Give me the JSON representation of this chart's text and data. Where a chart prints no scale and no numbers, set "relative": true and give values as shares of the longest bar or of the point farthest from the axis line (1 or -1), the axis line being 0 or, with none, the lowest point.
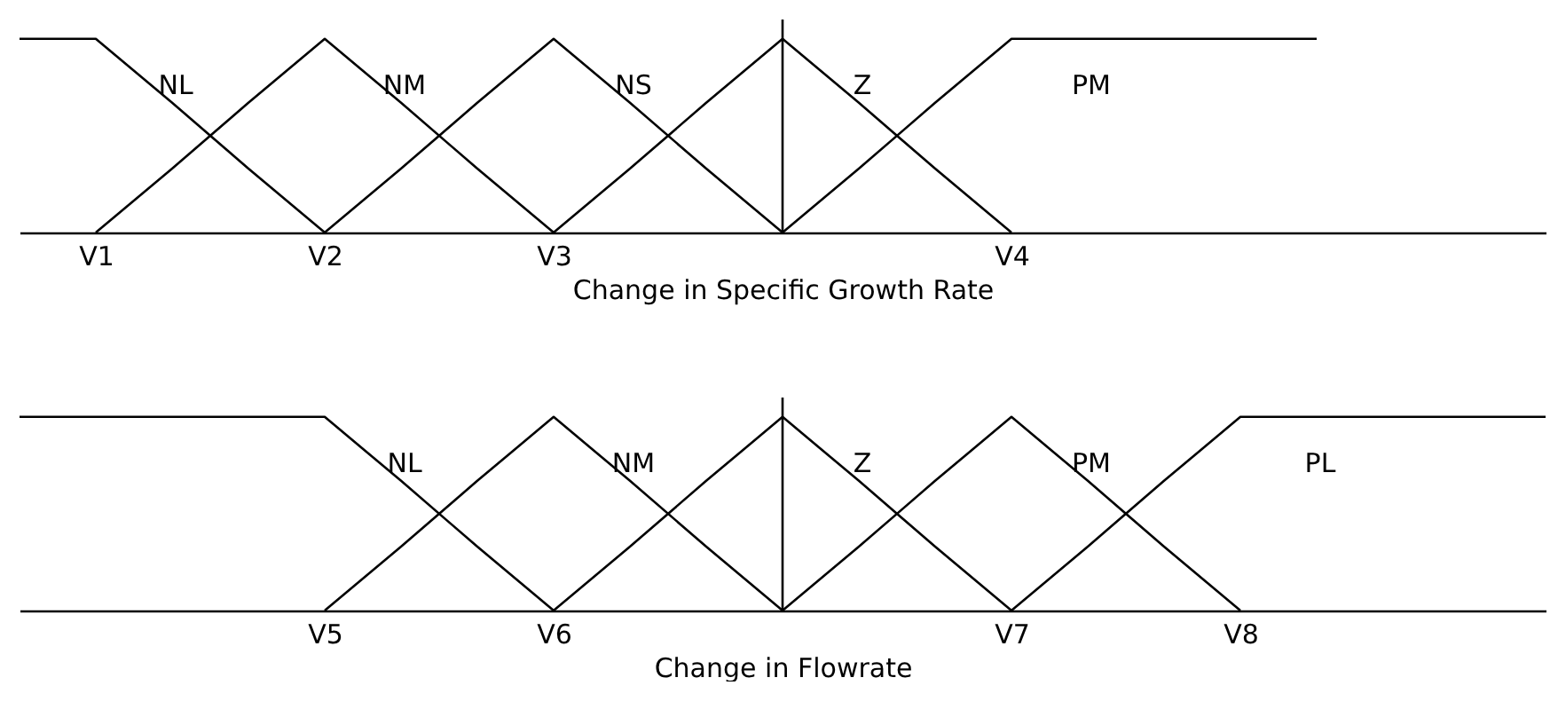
{
  "chart_data": [
    {
      "type": "line",
      "relative": true,
      "xlabel": "Change in Specific Growth Rate",
      "categories": [
        null,
        "V1",
        null,
        null,
        "V2",
        null,
        null,
        "V3",
        null,
        null,
        null,
        null,
        null,
        "V4",
        null,
        null,
        null,
        null,
        null,
        null,
        null
      ],
      "series": [
        {
          "name": "NL",
          "color": "#000000",
          "values": [
            1,
            1,
            0.67,
            0.33,
            0,
            null,
            null,
            null,
            null,
            null,
            null,
            null,
            null,
            null,
            null,
            null,
            null,
            null,
            null,
            null,
            null
          ]
        },
        {
          "name": "NM",
          "color": "#000000",
          "values": [
            null,
            0,
            0.33,
            0.67,
            1,
            0.67,
            0.33,
            0,
            null,
            null,
            null,
            null,
            null,
            null,
            null,
            null,
            null,
            null,
            null,
            null,
            null
          ]
        },
        {
          "name": "NS",
          "color": "#000000",
          "values": [
            null,
            null,
            null,
            null,
            0,
            0.33,
            0.67,
            1,
            0.67,
            0.33,
            0,
            null,
            null,
            null,
            null,
            null,
            null,
            null,
            null,
            null,
            null
          ]
        },
        {
          "name": "Z",
          "color": "#000000",
          "values": [
            null,
            null,
            null,
            null,
            null,
            null,
            null,
            0,
            0.33,
            0.67,
            1,
            0.67,
            0.33,
            0,
            null,
            null,
            null,
            null,
            null,
            null,
            null
          ]
        },
        {
          "name": "PM",
          "color": "#000000",
          "values": [
            null,
            null,
            null,
            null,
            null,
            null,
            null,
            null,
            null,
            null,
            0,
            0.33,
            0.67,
            1,
            1,
            1,
            1,
            1,
            null,
            null,
            null
          ]
        }
      ]
    },
    {
      "type": "line",
      "relative": true,
      "xlabel": "Change in Flowrate",
      "categories": [
        null,
        null,
        null,
        null,
        "V5",
        null,
        null,
        "V6",
        null,
        null,
        null,
        null,
        null,
        "V7",
        null,
        null,
        "V8",
        null,
        null,
        null,
        null
      ],
      "series": [
        {
          "name": "NL",
          "color": "#000000",
          "values": [
            1,
            1,
            1,
            1,
            1,
            0.67,
            0.33,
            0,
            null,
            null,
            null,
            null,
            null,
            null,
            null,
            null,
            null,
            null,
            null,
            null,
            null
          ]
        },
        {
          "name": "NM",
          "color": "#000000",
          "values": [
            null,
            null,
            null,
            null,
            0,
            0.33,
            0.67,
            1,
            0.67,
            0.33,
            0,
            null,
            null,
            null,
            null,
            null,
            null,
            null,
            null,
            null,
            null
          ]
        },
        {
          "name": "Z",
          "color": "#000000",
          "values": [
            null,
            null,
            null,
            null,
            null,
            null,
            null,
            0,
            0.33,
            0.67,
            1,
            0.67,
            0.33,
            0,
            null,
            null,
            null,
            null,
            null,
            null,
            null
          ]
        },
        {
          "name": "PM",
          "color": "#000000",
          "values": [
            null,
            null,
            null,
            null,
            null,
            null,
            null,
            null,
            null,
            null,
            0,
            0.33,
            0.67,
            1,
            0.67,
            0.33,
            0,
            null,
            null,
            null,
            null
          ]
        },
        {
          "name": "PL",
          "color": "#000000",
          "values": [
            null,
            null,
            null,
            null,
            null,
            null,
            null,
            null,
            null,
            null,
            null,
            null,
            null,
            0,
            0.33,
            0.67,
            1,
            1,
            1,
            1,
            1
          ]
        }
      ]
    }
  ]
}
